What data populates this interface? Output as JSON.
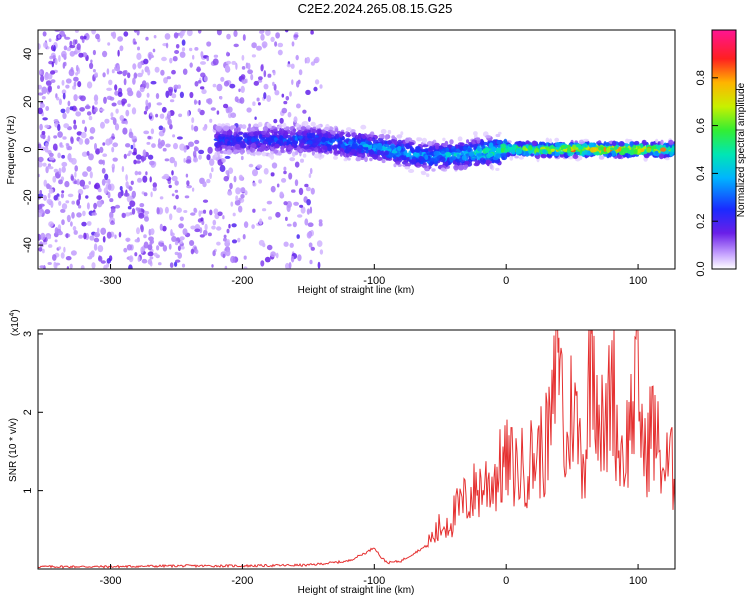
{
  "title": "C2E2.2024.265.08.15.G25",
  "colors": {
    "snr_line": "#e53030",
    "dot_main": "#6a1fe8",
    "dot_light": "#cdb5f5",
    "axis": "#000000"
  },
  "chart_data": [
    {
      "type": "heatmap",
      "xlabel": "Height of straight line (km)",
      "ylabel": "Frequency (Hz)",
      "xlim": [
        -355,
        128
      ],
      "ylim": [
        -50,
        50
      ],
      "xticks": [
        -300,
        -200,
        -100,
        0,
        100
      ],
      "xtick_labels": [
        "-300",
        "-200",
        "-100",
        "0",
        "100"
      ],
      "yticks": [
        -40,
        -20,
        0,
        20,
        40
      ],
      "ytick_labels": [
        "-40",
        "-20",
        "0",
        "20",
        "40"
      ],
      "colorbar": {
        "label": "Normalized spectral amplitude",
        "range": [
          0,
          1
        ],
        "ticks": [
          0.0,
          0.2,
          0.4,
          0.6,
          0.8
        ],
        "tick_labels": [
          "0.0",
          "0.2",
          "0.4",
          "0.6",
          "0.8"
        ],
        "colormap": "rainbow (white-violet-blue-cyan-green-yellow-red-magenta)"
      },
      "description_values": {
        "noise_region_x": [
          -355,
          -140
        ],
        "noise_freq_range": [
          -50,
          50
        ],
        "signal_line": [
          {
            "x": -220,
            "freq": 4,
            "amp": 0.3
          },
          {
            "x": -150,
            "freq": 4,
            "amp": 0.35
          },
          {
            "x": -100,
            "freq": 1,
            "amp": 0.45
          },
          {
            "x": -60,
            "freq": -3,
            "amp": 0.45
          },
          {
            "x": -30,
            "freq": -2,
            "amp": 0.5
          },
          {
            "x": 0,
            "freq": 0,
            "amp": 0.7
          },
          {
            "x": 50,
            "freq": 0,
            "amp": 0.95
          },
          {
            "x": 100,
            "freq": 0,
            "amp": 0.95
          },
          {
            "x": 128,
            "freq": 0,
            "amp": 0.8
          }
        ]
      }
    },
    {
      "type": "line",
      "xlabel": "Height of straight line (km)",
      "ylabel": "SNR (10 * v/v)",
      "y_multiplier_label": "(x10",
      "y_multiplier_exp": "4",
      "y_multiplier_close": ")",
      "xlim": [
        -355,
        128
      ],
      "ylim": [
        0,
        3.05
      ],
      "xticks": [
        -300,
        -200,
        -100,
        0,
        100
      ],
      "xtick_labels": [
        "-300",
        "-200",
        "-100",
        "0",
        "100"
      ],
      "yticks": [
        1,
        2,
        3
      ],
      "ytick_labels": [
        "1",
        "2",
        "3"
      ],
      "series": [
        {
          "x": [
            -355,
            -300,
            -250,
            -200,
            -150,
            -120,
            -110,
            -105,
            -100,
            -95,
            -90,
            -80,
            -70,
            -60,
            -50,
            -40,
            -30,
            -20,
            -10,
            0,
            10,
            20,
            30,
            35,
            40,
            45,
            50,
            55,
            60,
            65,
            70,
            75,
            80,
            85,
            90,
            95,
            100,
            105,
            110,
            115,
            120,
            125,
            128
          ],
          "values": [
            0.03,
            0.03,
            0.04,
            0.04,
            0.05,
            0.1,
            0.18,
            0.22,
            0.28,
            0.15,
            0.08,
            0.1,
            0.2,
            0.3,
            0.5,
            0.65,
            0.85,
            1.0,
            1.1,
            1.3,
            1.2,
            1.35,
            1.5,
            1.8,
            2.95,
            1.2,
            2.1,
            1.6,
            1.3,
            3.0,
            2.0,
            1.5,
            2.5,
            1.5,
            1.4,
            1.9,
            2.3,
            1.3,
            1.8,
            1.5,
            1.2,
            1.3,
            1.0
          ]
        }
      ]
    }
  ]
}
